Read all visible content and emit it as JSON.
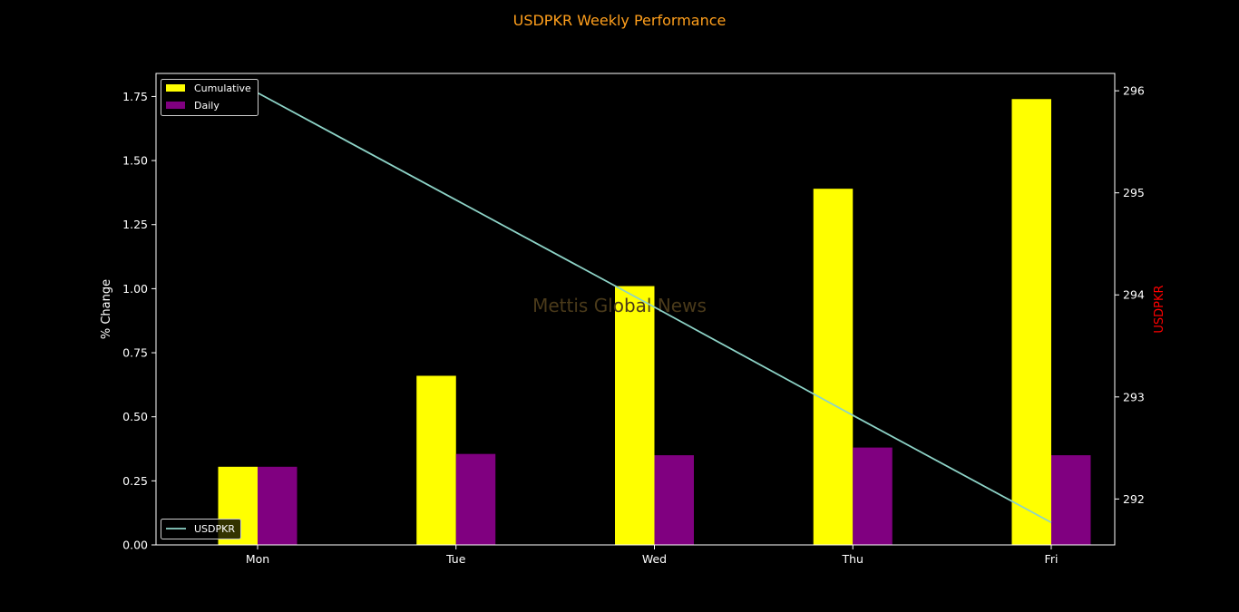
{
  "chart_data": {
    "type": "bar",
    "title": "USDPKR Weekly Performance",
    "watermark": "Mettis Global News",
    "categories": [
      "Mon",
      "Tue",
      "Wed",
      "Thu",
      "Fri"
    ],
    "series": [
      {
        "name": "Cumulative",
        "values": [
          0.305,
          0.66,
          1.01,
          1.39,
          1.74
        ],
        "color": "#ffff00",
        "axis": "left"
      },
      {
        "name": "Daily",
        "values": [
          0.305,
          0.355,
          0.35,
          0.38,
          0.35
        ],
        "color": "#800080",
        "axis": "left"
      },
      {
        "name": "USDPKR",
        "type": "line",
        "values": [
          295.98,
          294.93,
          293.88,
          292.82,
          291.77
        ],
        "color": "#8dd3c7",
        "axis": "right"
      }
    ],
    "ylabel": "% Change",
    "ylabel_right": "USDPKR",
    "ylabel_right_color": "#ff0000",
    "title_color": "#ff9f1c",
    "ylim": [
      0,
      1.84
    ],
    "ylim_right": [
      291.55,
      296.17
    ],
    "yticks": [
      0.0,
      0.25,
      0.5,
      0.75,
      1.0,
      1.25,
      1.5,
      1.75
    ],
    "ytick_labels": [
      "0.00",
      "0.25",
      "0.50",
      "0.75",
      "1.00",
      "1.25",
      "1.50",
      "1.75"
    ],
    "yticks_right": [
      292,
      293,
      294,
      295,
      296
    ],
    "ytick_labels_right": [
      "292",
      "293",
      "294",
      "295",
      "296"
    ],
    "legend_bars_position": "top-left",
    "legend_line_position": "bottom-left",
    "grid": false
  }
}
